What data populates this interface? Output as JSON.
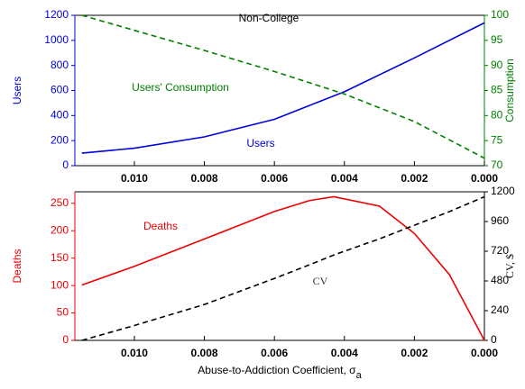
{
  "chart_data": [
    {
      "type": "line",
      "title": "Non-College",
      "y_label": "Users",
      "y2_label": "Consumption",
      "annotations": [
        "Users' Consumption",
        "Users"
      ],
      "x": [
        0.0115,
        0.01,
        0.008,
        0.006,
        0.004,
        0.002,
        0.0
      ],
      "xlim": [
        0.0117,
        0
      ],
      "xticks": [
        {
          "value": 0.01,
          "label": "0.010"
        },
        {
          "value": 0.008,
          "label": "0.008"
        },
        {
          "value": 0.006,
          "label": "0.006"
        },
        {
          "value": 0.004,
          "label": "0.004"
        },
        {
          "value": 0.002,
          "label": "0.002"
        },
        {
          "value": 0,
          "label": "0.000"
        }
      ],
      "ylim": [
        0,
        1200
      ],
      "yticks": [
        0,
        200,
        400,
        600,
        800,
        1000,
        1200
      ],
      "y2lim": [
        70,
        100
      ],
      "y2ticks": [
        70,
        75,
        80,
        85,
        90,
        95,
        100
      ],
      "series": [
        {
          "name": "Users",
          "color": "#0000dd",
          "dash": false,
          "values": [
            100,
            140,
            230,
            370,
            590,
            860,
            1140
          ]
        },
        {
          "name": "Users' Consumption",
          "color": "#007f00",
          "dash": true,
          "axis": "y2",
          "values": [
            100,
            97,
            93,
            88.8,
            84.3,
            78.8,
            71.5
          ]
        }
      ]
    },
    {
      "type": "line",
      "y_label": "Deaths",
      "y2_label": "CV, $",
      "x_label": "Abuse-to-Addiction Coefficient, σ",
      "x_label_sub": "a",
      "annotations": [
        "Deaths",
        "CV"
      ],
      "x": [
        0.0115,
        0.01,
        0.008,
        0.006,
        0.005,
        0.0043,
        0.003,
        0.002,
        0.001,
        0.0
      ],
      "xlim": [
        0.0117,
        0
      ],
      "xticks": [
        {
          "value": 0.01,
          "label": "0.010"
        },
        {
          "value": 0.008,
          "label": "0.008"
        },
        {
          "value": 0.006,
          "label": "0.006"
        },
        {
          "value": 0.004,
          "label": "0.004"
        },
        {
          "value": 0.002,
          "label": "0.002"
        },
        {
          "value": 0,
          "label": "0.000"
        }
      ],
      "ylim": [
        0,
        271
      ],
      "yticks": [
        0,
        50,
        100,
        150,
        200,
        250
      ],
      "y2lim": [
        0,
        1200
      ],
      "y2ticks": [
        0,
        240,
        480,
        720,
        960,
        1200
      ],
      "series": [
        {
          "name": "Deaths",
          "color": "#ee0000",
          "dash": false,
          "values": [
            101,
            135,
            185,
            235,
            255,
            262,
            245,
            195,
            120,
            0
          ]
        },
        {
          "name": "CV",
          "color": "#000000",
          "dash": true,
          "axis": "y2",
          "values": [
            0,
            120,
            290,
            500,
            610,
            690,
            820,
            930,
            1040,
            1160
          ]
        }
      ]
    }
  ]
}
